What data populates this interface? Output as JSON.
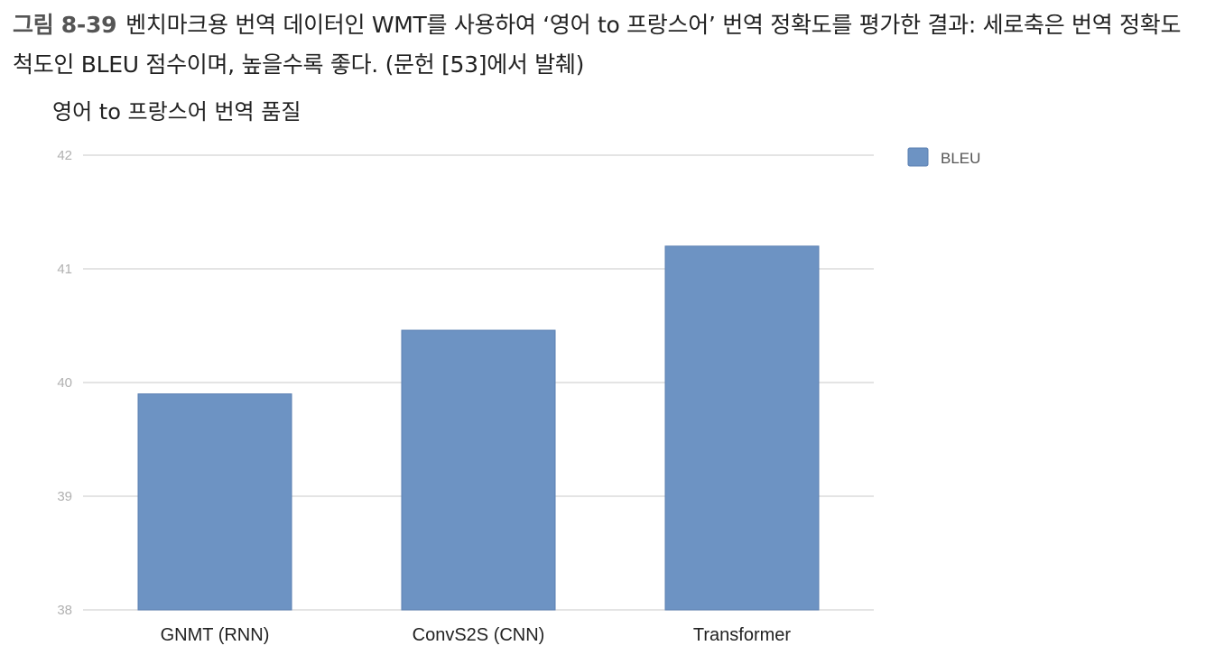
{
  "caption": {
    "figure_label": "그림 8-39",
    "text": "벤치마크용 번역 데이터인 WMT를 사용하여 ‘영어 to 프랑스어’ 번역 정확도를 평가한 결과: 세로축은 번역 정확도 척도인 BLEU 점수이며, 높을수록 좋다. (문헌 [53]에서 발췌)"
  },
  "chart_data": {
    "type": "bar",
    "title": "영어 to 프랑스어 번역 품질",
    "categories": [
      "GNMT (RNN)",
      "ConvS2S (CNN)",
      "Transformer"
    ],
    "series": [
      {
        "name": "BLEU",
        "values": [
          39.9,
          40.46,
          41.2
        ]
      }
    ],
    "ylim": [
      38,
      42
    ],
    "yticks": [
      38,
      39,
      40,
      41,
      42
    ],
    "grid": true,
    "legend_position": "top-right",
    "bar_color": "#6d93c3",
    "grid_color": "#dcdcdc"
  }
}
